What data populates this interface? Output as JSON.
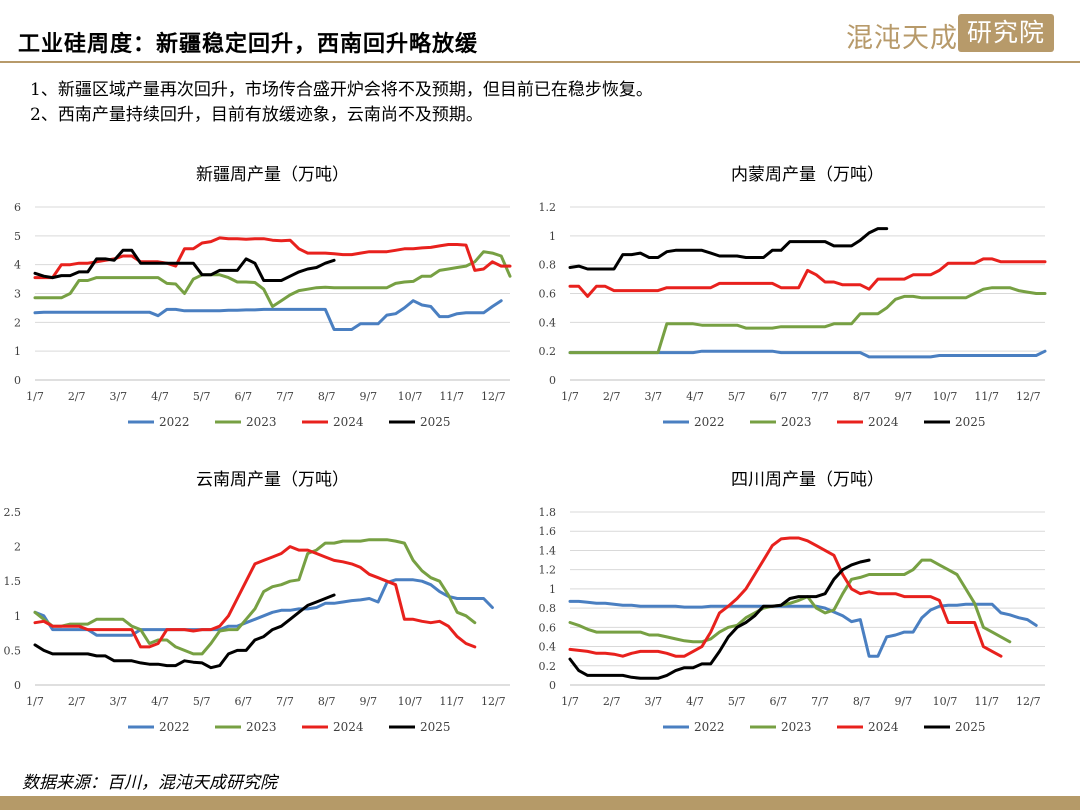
{
  "header": {
    "title": "工业硅周度：新疆稳定回升，西南回升略放缓",
    "logo_text": "混沌天成",
    "logo_box_text": "研究院"
  },
  "bullets": [
    "1、新疆区域产量再次回升，市场传合盛开炉会将不及预期，但目前已在稳步恢复。",
    "2、西南产量持续回升，目前有放缓迹象，云南尚不及预期。"
  ],
  "footer": {
    "source": "数据来源：百川，混沌天成研究院"
  },
  "colors": {
    "accent": "#b79a6a",
    "2022": "#4a7fc1",
    "2023": "#77a043",
    "2024": "#e8211d",
    "2025": "#000000"
  },
  "chart_data": [
    {
      "type": "line",
      "title": "新疆周产量（万吨）",
      "x_ticks": [
        "1/7",
        "2/7",
        "3/7",
        "4/7",
        "5/7",
        "6/7",
        "7/7",
        "8/7",
        "9/7",
        "10/7",
        "11/7",
        "12/7"
      ],
      "ylim": [
        0,
        6
      ],
      "y_ticks": [
        "0",
        "1",
        "2",
        "3",
        "4",
        "5",
        "6"
      ],
      "grid": true,
      "legend_position": "bottom",
      "series": [
        {
          "name": "2022",
          "values": [
            2.33,
            2.35,
            2.35,
            2.35,
            2.35,
            2.35,
            2.35,
            2.35,
            2.35,
            2.35,
            2.35,
            2.35,
            2.35,
            2.35,
            2.23,
            2.45,
            2.45,
            2.4,
            2.4,
            2.4,
            2.4,
            2.4,
            2.42,
            2.42,
            2.43,
            2.43,
            2.45,
            2.45,
            2.45,
            2.45,
            2.45,
            2.45,
            2.45,
            2.45,
            1.75,
            1.75,
            1.75,
            1.95,
            1.95,
            1.95,
            2.25,
            2.3,
            2.5,
            2.75,
            2.6,
            2.55,
            2.2,
            2.2,
            2.3,
            2.33,
            2.33,
            2.33,
            2.55,
            2.75
          ]
        },
        {
          "name": "2023",
          "values": [
            2.85,
            2.85,
            2.85,
            2.85,
            3.0,
            3.45,
            3.45,
            3.55,
            3.55,
            3.55,
            3.55,
            3.55,
            3.55,
            3.55,
            3.55,
            3.35,
            3.33,
            3.0,
            3.5,
            3.65,
            3.65,
            3.65,
            3.55,
            3.4,
            3.4,
            3.38,
            3.15,
            2.55,
            2.75,
            2.95,
            3.1,
            3.15,
            3.2,
            3.22,
            3.2,
            3.2,
            3.2,
            3.2,
            3.2,
            3.2,
            3.2,
            3.35,
            3.4,
            3.42,
            3.6,
            3.6,
            3.8,
            3.85,
            3.9,
            3.95,
            4.1,
            4.45,
            4.4,
            4.3,
            3.6
          ]
        },
        {
          "name": "2024",
          "values": [
            3.55,
            3.55,
            3.55,
            4.0,
            4.0,
            4.05,
            4.05,
            4.1,
            4.15,
            4.2,
            4.3,
            4.3,
            4.1,
            4.1,
            4.1,
            4.05,
            3.95,
            4.55,
            4.55,
            4.75,
            4.8,
            4.93,
            4.9,
            4.9,
            4.88,
            4.9,
            4.9,
            4.85,
            4.83,
            4.85,
            4.55,
            4.4,
            4.4,
            4.4,
            4.38,
            4.35,
            4.35,
            4.4,
            4.45,
            4.45,
            4.45,
            4.5,
            4.55,
            4.55,
            4.58,
            4.6,
            4.65,
            4.7,
            4.7,
            4.68,
            3.8,
            3.85,
            4.1,
            3.95,
            3.95
          ]
        },
        {
          "name": "2025",
          "values": [
            3.7,
            3.6,
            3.55,
            3.62,
            3.62,
            3.75,
            3.75,
            4.2,
            4.2,
            4.15,
            4.5,
            4.5,
            4.05,
            4.05,
            4.05,
            4.05,
            4.05,
            4.05,
            4.05,
            3.65,
            3.65,
            3.8,
            3.8,
            3.8,
            4.2,
            4.05,
            3.45,
            3.45,
            3.45,
            3.6,
            3.75,
            3.85,
            3.9,
            4.05,
            4.15
          ]
        }
      ]
    },
    {
      "type": "line",
      "title": "内蒙周产量（万吨）",
      "x_ticks": [
        "1/7",
        "2/7",
        "3/7",
        "4/7",
        "5/7",
        "6/7",
        "7/7",
        "8/7",
        "9/7",
        "10/7",
        "11/7",
        "12/7"
      ],
      "ylim": [
        0,
        1.2
      ],
      "y_ticks": [
        "0",
        "0.2",
        "0.4",
        "0.6",
        "0.8",
        "1",
        "1.2"
      ],
      "grid": true,
      "legend_position": "bottom",
      "series": [
        {
          "name": "2022",
          "values": [
            0.19,
            0.19,
            0.19,
            0.19,
            0.19,
            0.19,
            0.19,
            0.19,
            0.19,
            0.19,
            0.19,
            0.19,
            0.19,
            0.19,
            0.19,
            0.2,
            0.2,
            0.2,
            0.2,
            0.2,
            0.2,
            0.2,
            0.2,
            0.2,
            0.19,
            0.19,
            0.19,
            0.19,
            0.19,
            0.19,
            0.19,
            0.19,
            0.19,
            0.19,
            0.16,
            0.16,
            0.16,
            0.16,
            0.16,
            0.16,
            0.16,
            0.16,
            0.17,
            0.17,
            0.17,
            0.17,
            0.17,
            0.17,
            0.17,
            0.17,
            0.17,
            0.17,
            0.17,
            0.17,
            0.2
          ]
        },
        {
          "name": "2023",
          "values": [
            0.19,
            0.19,
            0.19,
            0.19,
            0.19,
            0.19,
            0.19,
            0.19,
            0.19,
            0.19,
            0.19,
            0.39,
            0.39,
            0.39,
            0.39,
            0.38,
            0.38,
            0.38,
            0.38,
            0.38,
            0.36,
            0.36,
            0.36,
            0.36,
            0.37,
            0.37,
            0.37,
            0.37,
            0.37,
            0.37,
            0.39,
            0.39,
            0.39,
            0.46,
            0.46,
            0.46,
            0.5,
            0.56,
            0.58,
            0.58,
            0.57,
            0.57,
            0.57,
            0.57,
            0.57,
            0.57,
            0.6,
            0.63,
            0.64,
            0.64,
            0.64,
            0.62,
            0.61,
            0.6,
            0.6
          ]
        },
        {
          "name": "2024",
          "values": [
            0.65,
            0.65,
            0.58,
            0.65,
            0.65,
            0.62,
            0.62,
            0.62,
            0.62,
            0.62,
            0.62,
            0.64,
            0.64,
            0.64,
            0.64,
            0.64,
            0.64,
            0.67,
            0.67,
            0.67,
            0.67,
            0.67,
            0.67,
            0.67,
            0.64,
            0.64,
            0.64,
            0.76,
            0.73,
            0.68,
            0.68,
            0.66,
            0.66,
            0.66,
            0.63,
            0.7,
            0.7,
            0.7,
            0.7,
            0.73,
            0.73,
            0.73,
            0.76,
            0.81,
            0.81,
            0.81,
            0.81,
            0.84,
            0.84,
            0.82,
            0.82,
            0.82,
            0.82,
            0.82,
            0.82
          ]
        },
        {
          "name": "2025",
          "values": [
            0.78,
            0.79,
            0.77,
            0.77,
            0.77,
            0.77,
            0.87,
            0.87,
            0.88,
            0.85,
            0.85,
            0.89,
            0.9,
            0.9,
            0.9,
            0.9,
            0.88,
            0.86,
            0.86,
            0.86,
            0.85,
            0.85,
            0.85,
            0.9,
            0.9,
            0.96,
            0.96,
            0.96,
            0.96,
            0.96,
            0.93,
            0.93,
            0.93,
            0.97,
            1.02,
            1.05,
            1.05
          ]
        }
      ]
    },
    {
      "type": "line",
      "title": "云南周产量（万吨）",
      "x_ticks": [
        "1/7",
        "2/7",
        "3/7",
        "4/7",
        "5/7",
        "6/7",
        "7/7",
        "8/7",
        "9/7",
        "10/7",
        "11/7",
        "12/7"
      ],
      "ylim": [
        0,
        2.5
      ],
      "y_ticks": [
        "0",
        "0.5",
        "1",
        "1.5",
        "2",
        "2.5"
      ],
      "grid": false,
      "legend_position": "bottom",
      "series": [
        {
          "name": "2022",
          "values": [
            1.05,
            1.0,
            0.8,
            0.8,
            0.8,
            0.8,
            0.8,
            0.72,
            0.72,
            0.72,
            0.72,
            0.72,
            0.8,
            0.8,
            0.8,
            0.8,
            0.8,
            0.8,
            0.8,
            0.8,
            0.8,
            0.8,
            0.85,
            0.85,
            0.9,
            0.95,
            1.0,
            1.05,
            1.08,
            1.08,
            1.1,
            1.1,
            1.12,
            1.18,
            1.18,
            1.2,
            1.22,
            1.23,
            1.25,
            1.2,
            1.48,
            1.52,
            1.52,
            1.52,
            1.5,
            1.45,
            1.35,
            1.28,
            1.25,
            1.25,
            1.25,
            1.25,
            1.12
          ]
        },
        {
          "name": "2023",
          "values": [
            1.05,
            0.95,
            0.85,
            0.85,
            0.88,
            0.88,
            0.88,
            0.95,
            0.95,
            0.95,
            0.95,
            0.85,
            0.8,
            0.6,
            0.65,
            0.65,
            0.55,
            0.5,
            0.45,
            0.45,
            0.6,
            0.78,
            0.8,
            0.8,
            0.95,
            1.1,
            1.35,
            1.42,
            1.45,
            1.5,
            1.52,
            1.9,
            1.95,
            2.05,
            2.05,
            2.08,
            2.08,
            2.08,
            2.1,
            2.1,
            2.1,
            2.08,
            2.05,
            1.8,
            1.65,
            1.55,
            1.5,
            1.3,
            1.05,
            1.0,
            0.9
          ]
        },
        {
          "name": "2024",
          "values": [
            0.9,
            0.92,
            0.85,
            0.85,
            0.85,
            0.85,
            0.8,
            0.8,
            0.8,
            0.8,
            0.8,
            0.8,
            0.55,
            0.55,
            0.6,
            0.8,
            0.8,
            0.8,
            0.78,
            0.8,
            0.8,
            0.85,
            1.0,
            1.25,
            1.5,
            1.75,
            1.8,
            1.85,
            1.9,
            2.0,
            1.95,
            1.95,
            1.9,
            1.85,
            1.8,
            1.78,
            1.75,
            1.7,
            1.6,
            1.55,
            1.5,
            1.45,
            0.95,
            0.95,
            0.92,
            0.9,
            0.92,
            0.85,
            0.7,
            0.6,
            0.55
          ]
        },
        {
          "name": "2025",
          "values": [
            0.58,
            0.5,
            0.45,
            0.45,
            0.45,
            0.45,
            0.45,
            0.42,
            0.42,
            0.35,
            0.35,
            0.35,
            0.32,
            0.3,
            0.3,
            0.28,
            0.28,
            0.35,
            0.33,
            0.32,
            0.25,
            0.28,
            0.45,
            0.5,
            0.5,
            0.65,
            0.7,
            0.8,
            0.85,
            0.95,
            1.05,
            1.15,
            1.2,
            1.25,
            1.3
          ]
        }
      ]
    },
    {
      "type": "line",
      "title": "四川周产量（万吨）",
      "x_ticks": [
        "1/7",
        "2/7",
        "3/7",
        "4/7",
        "5/7",
        "6/7",
        "7/7",
        "8/7",
        "9/7",
        "10/7",
        "11/7",
        "12/7"
      ],
      "ylim": [
        0,
        1.8
      ],
      "y_ticks": [
        "0",
        "0.2",
        "0.4",
        "0.6",
        "0.8",
        "1",
        "1.2",
        "1.4",
        "1.6",
        "1.8"
      ],
      "grid": true,
      "legend_position": "bottom",
      "series": [
        {
          "name": "2022",
          "values": [
            0.87,
            0.87,
            0.86,
            0.85,
            0.85,
            0.84,
            0.83,
            0.83,
            0.82,
            0.82,
            0.82,
            0.82,
            0.82,
            0.81,
            0.81,
            0.81,
            0.82,
            0.82,
            0.82,
            0.82,
            0.82,
            0.82,
            0.82,
            0.82,
            0.82,
            0.82,
            0.82,
            0.82,
            0.82,
            0.8,
            0.76,
            0.72,
            0.66,
            0.68,
            0.3,
            0.3,
            0.5,
            0.52,
            0.55,
            0.55,
            0.7,
            0.78,
            0.82,
            0.83,
            0.83,
            0.84,
            0.84,
            0.84,
            0.84,
            0.75,
            0.73,
            0.7,
            0.68,
            0.62
          ]
        },
        {
          "name": "2023",
          "values": [
            0.65,
            0.62,
            0.58,
            0.55,
            0.55,
            0.55,
            0.55,
            0.55,
            0.55,
            0.52,
            0.52,
            0.5,
            0.48,
            0.46,
            0.45,
            0.45,
            0.48,
            0.55,
            0.6,
            0.62,
            0.7,
            0.75,
            0.8,
            0.82,
            0.83,
            0.85,
            0.88,
            0.92,
            0.8,
            0.75,
            0.78,
            0.95,
            1.1,
            1.12,
            1.15,
            1.15,
            1.15,
            1.15,
            1.15,
            1.2,
            1.3,
            1.3,
            1.25,
            1.2,
            1.15,
            1.0,
            0.85,
            0.6,
            0.55,
            0.5,
            0.45
          ]
        },
        {
          "name": "2024",
          "values": [
            0.37,
            0.36,
            0.35,
            0.33,
            0.33,
            0.32,
            0.3,
            0.33,
            0.35,
            0.35,
            0.35,
            0.33,
            0.3,
            0.3,
            0.35,
            0.4,
            0.55,
            0.75,
            0.82,
            0.9,
            1.0,
            1.15,
            1.3,
            1.45,
            1.52,
            1.53,
            1.53,
            1.5,
            1.45,
            1.4,
            1.35,
            1.15,
            1.0,
            0.95,
            0.97,
            0.95,
            0.95,
            0.95,
            0.92,
            0.92,
            0.92,
            0.92,
            0.88,
            0.65,
            0.65,
            0.65,
            0.65,
            0.4,
            0.35,
            0.3
          ]
        },
        {
          "name": "2025",
          "values": [
            0.27,
            0.15,
            0.1,
            0.1,
            0.1,
            0.1,
            0.1,
            0.08,
            0.07,
            0.07,
            0.07,
            0.1,
            0.15,
            0.18,
            0.18,
            0.22,
            0.22,
            0.35,
            0.5,
            0.6,
            0.65,
            0.72,
            0.82,
            0.82,
            0.83,
            0.9,
            0.92,
            0.92,
            0.92,
            0.95,
            1.1,
            1.2,
            1.25,
            1.28,
            1.3
          ]
        }
      ]
    }
  ]
}
